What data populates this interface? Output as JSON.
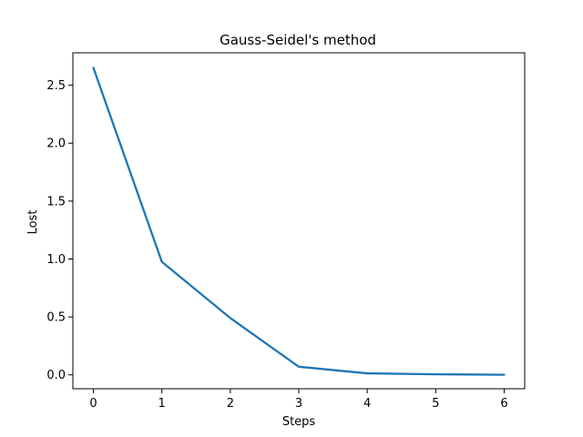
{
  "chart_data": {
    "type": "line",
    "title": "Gauss-Seidel's method",
    "xlabel": "Steps",
    "ylabel": "Lost",
    "x": [
      0,
      1,
      2,
      3,
      4,
      5,
      6
    ],
    "series": [
      {
        "values": [
          2.65,
          0.975,
          0.49,
          0.07,
          0.013,
          0.005,
          0.001
        ],
        "color": "#1f77b4"
      }
    ],
    "xlim": [
      -0.3,
      6.3
    ],
    "ylim": [
      -0.12,
      2.78
    ],
    "xticks": [
      0,
      1,
      2,
      3,
      4,
      5,
      6
    ],
    "xtick_labels": [
      "0",
      "1",
      "2",
      "3",
      "4",
      "5",
      "6"
    ],
    "yticks": [
      0.0,
      0.5,
      1.0,
      1.5,
      2.0,
      2.5
    ],
    "ytick_labels": [
      "0.0",
      "0.5",
      "1.0",
      "1.5",
      "2.0",
      "2.5"
    ],
    "grid": false,
    "legend": "none"
  }
}
